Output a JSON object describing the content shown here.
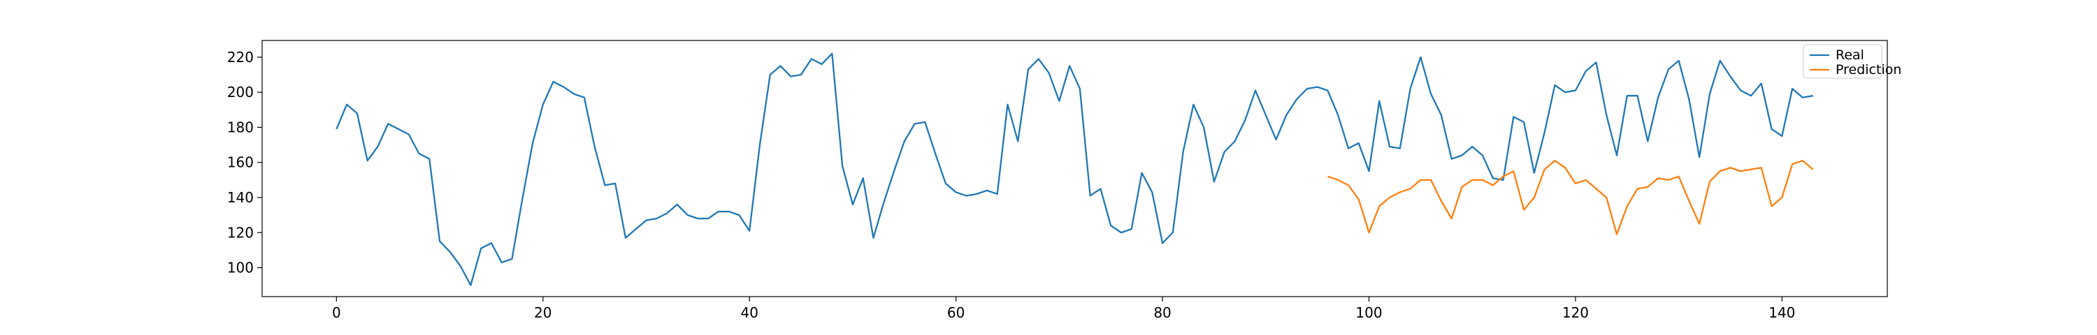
{
  "chart_data": {
    "type": "line",
    "title": "",
    "xlabel": "",
    "ylabel": "",
    "xlim": [
      -7.2,
      150.2
    ],
    "ylim": [
      83.5,
      229.5
    ],
    "x_ticks": [
      0,
      20,
      40,
      60,
      80,
      100,
      120,
      140
    ],
    "y_ticks": [
      100,
      120,
      140,
      160,
      180,
      200,
      220
    ],
    "grid": false,
    "legend": "top-right",
    "series": [
      {
        "name": "Real",
        "color": "#1f77b4",
        "x_start": 0,
        "values": [
          179,
          193,
          188,
          161,
          169,
          182,
          179,
          176,
          165,
          162,
          115,
          109,
          101,
          90,
          111,
          114,
          103,
          105,
          139,
          171,
          193,
          206,
          203,
          199,
          197,
          169,
          147,
          148,
          117,
          122,
          127,
          128,
          131,
          136,
          130,
          128,
          128,
          132,
          132,
          130,
          121,
          170,
          210,
          215,
          209,
          210,
          219,
          216,
          222,
          158,
          136,
          151,
          117,
          137,
          155,
          172,
          182,
          183,
          165,
          148,
          143,
          141,
          142,
          144,
          142,
          193,
          172,
          213,
          219,
          211,
          195,
          215,
          202,
          141,
          145,
          124,
          120,
          122,
          154,
          143,
          114,
          120,
          166,
          193,
          180,
          149,
          166,
          172,
          184,
          201,
          187,
          173,
          187,
          196,
          202,
          203,
          201,
          187,
          168,
          171,
          155,
          195,
          169,
          168,
          202,
          220,
          199,
          187,
          162,
          164,
          169,
          164,
          151,
          150,
          186,
          183,
          154,
          177,
          204,
          200,
          201,
          212,
          217,
          187,
          164,
          198,
          198,
          172,
          197,
          213,
          218,
          196,
          163,
          199,
          218,
          209,
          201,
          198,
          205,
          179,
          175,
          202,
          197,
          198
        ]
      },
      {
        "name": "Prediction",
        "color": "#ff7f0e",
        "x_start": 96,
        "values": [
          152,
          150,
          147,
          139,
          120,
          135,
          140,
          143,
          145,
          150,
          150,
          138,
          128,
          146,
          150,
          150,
          147,
          152,
          155,
          133,
          140,
          156,
          161,
          157,
          148,
          150,
          145,
          140,
          119,
          135,
          145,
          146,
          151,
          150,
          152,
          138,
          125,
          149,
          155,
          157,
          155,
          156,
          157,
          135,
          140,
          159,
          161,
          156
        ]
      }
    ]
  }
}
